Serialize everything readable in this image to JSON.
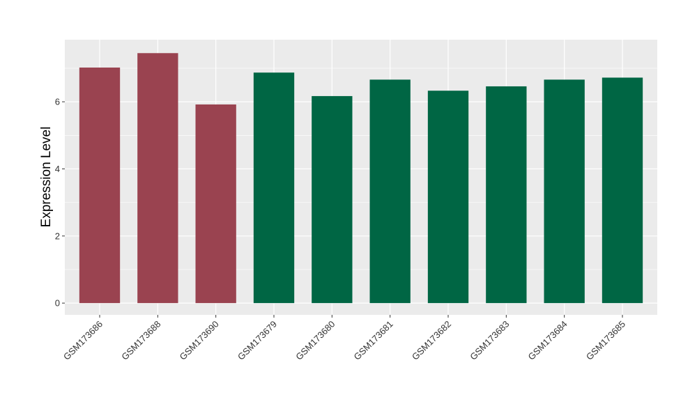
{
  "chart_data": {
    "type": "bar",
    "title": "",
    "xlabel": "",
    "ylabel": "Expression Level",
    "categories": [
      "GSM173686",
      "GSM173688",
      "GSM173690",
      "GSM173679",
      "GSM173680",
      "GSM173681",
      "GSM173682",
      "GSM173683",
      "GSM173684",
      "GSM173685"
    ],
    "values": [
      7.02,
      7.45,
      5.92,
      6.87,
      6.17,
      6.66,
      6.33,
      6.46,
      6.66,
      6.72
    ],
    "bar_colors": [
      "#9a4350",
      "#9a4350",
      "#9a4350",
      "#006644",
      "#006644",
      "#006644",
      "#006644",
      "#006644",
      "#006644",
      "#006644"
    ],
    "ylim": [
      -0.35,
      7.85
    ],
    "yticks": [
      0,
      2,
      4,
      6
    ],
    "grid": true,
    "legend": "none",
    "panel_background": "#ebebeb",
    "gridline_color": "#ffffff"
  }
}
